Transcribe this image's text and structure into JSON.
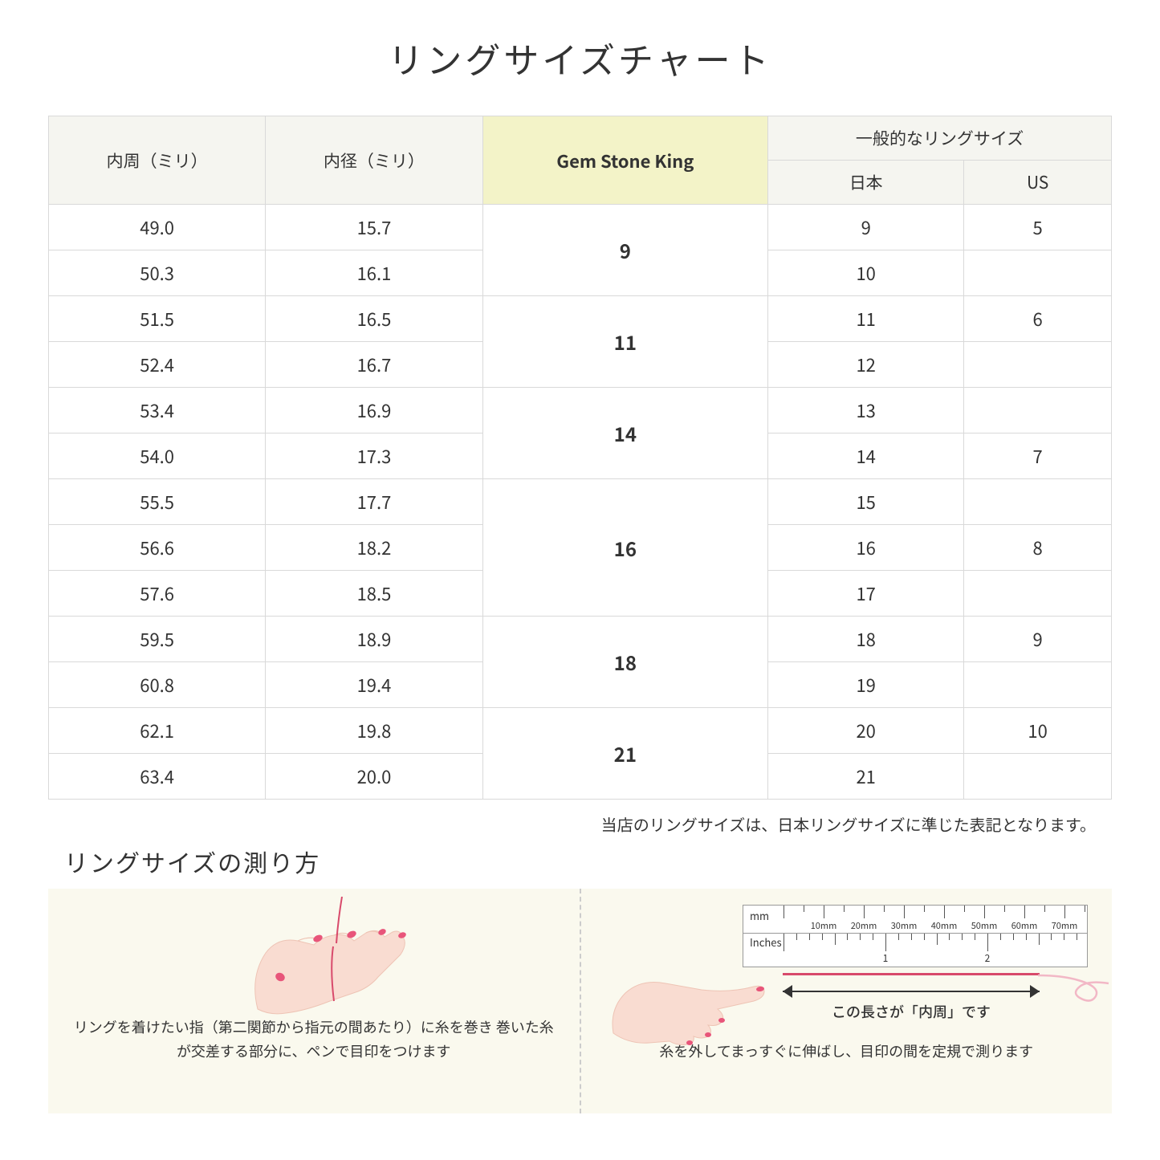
{
  "title": "リングサイズチャート",
  "headers": {
    "circumference": "内周（ミリ）",
    "diameter": "内径（ミリ）",
    "gsk": "Gem Stone King",
    "general": "一般的なリングサイズ",
    "japan": "日本",
    "us": "US"
  },
  "rows": [
    {
      "circ": "49.0",
      "diam": "15.7",
      "gsk": "9",
      "gsk_span": 2,
      "jp": "9",
      "us": "5"
    },
    {
      "circ": "50.3",
      "diam": "16.1",
      "jp": "10",
      "us": ""
    },
    {
      "circ": "51.5",
      "diam": "16.5",
      "gsk": "11",
      "gsk_span": 2,
      "jp": "11",
      "us": "6"
    },
    {
      "circ": "52.4",
      "diam": "16.7",
      "jp": "12",
      "us": ""
    },
    {
      "circ": "53.4",
      "diam": "16.9",
      "gsk": "14",
      "gsk_span": 2,
      "jp": "13",
      "us": ""
    },
    {
      "circ": "54.0",
      "diam": "17.3",
      "jp": "14",
      "us": "7"
    },
    {
      "circ": "55.5",
      "diam": "17.7",
      "gsk": "16",
      "gsk_span": 3,
      "jp": "15",
      "us": ""
    },
    {
      "circ": "56.6",
      "diam": "18.2",
      "jp": "16",
      "us": "8"
    },
    {
      "circ": "57.6",
      "diam": "18.5",
      "jp": "17",
      "us": ""
    },
    {
      "circ": "59.5",
      "diam": "18.9",
      "gsk": "18",
      "gsk_span": 2,
      "jp": "18",
      "us": "9"
    },
    {
      "circ": "60.8",
      "diam": "19.4",
      "jp": "19",
      "us": ""
    },
    {
      "circ": "62.1",
      "diam": "19.8",
      "gsk": "21",
      "gsk_span": 2,
      "jp": "20",
      "us": "10"
    },
    {
      "circ": "63.4",
      "diam": "20.0",
      "jp": "21",
      "us": ""
    }
  ],
  "note": "当店のリングサイズは、日本リングサイズに準じた表記となります。",
  "howto_title": "リングサイズの測り方",
  "howto": {
    "left_caption": "リングを着けたい指（第二関節から指元の間あたり）に糸を巻き\n巻いた糸が交差する部分に、ペンで目印をつけます",
    "right_caption": "糸を外してまっすぐに伸ばし、目印の間を定規で測ります",
    "measure_label": "この長さが「内周」です",
    "ruler_mm_unit": "mm",
    "ruler_in_unit": "Inches",
    "ruler_mm_labels": [
      "10mm",
      "20mm",
      "30mm",
      "40mm",
      "50mm",
      "60mm",
      "70mm"
    ],
    "ruler_in_labels": [
      "1",
      "2"
    ]
  },
  "colors": {
    "header_bg": "#f5f5f0",
    "highlight_bg": "#f3f3c8",
    "border": "#d9d9d9",
    "howto_bg": "#faf9ee",
    "skin": "#f9dcd1",
    "skin_shadow": "#eec4b5",
    "nail": "#e8557a",
    "thread": "#d84a6b"
  }
}
